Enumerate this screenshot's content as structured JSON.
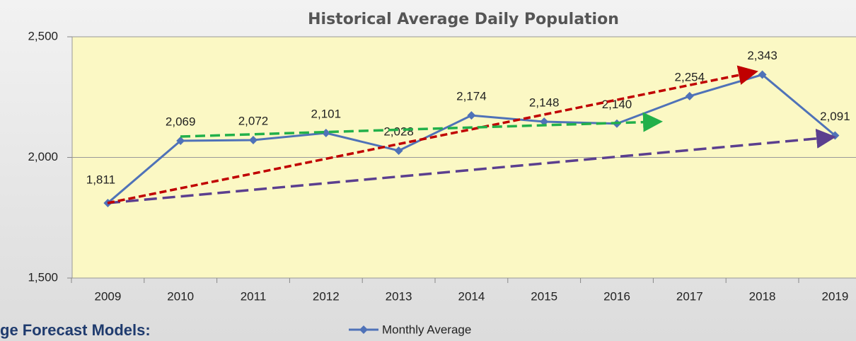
{
  "chart_data": {
    "type": "line",
    "title": "Historical Average Daily Population",
    "categories": [
      "2009",
      "2010",
      "2011",
      "2012",
      "2013",
      "2014",
      "2015",
      "2016",
      "2017",
      "2018",
      "2019"
    ],
    "series": [
      {
        "name": "Monthly Average",
        "color": "#4f72b8",
        "values": [
          1811,
          2069,
          2072,
          2101,
          2028,
          2174,
          2148,
          2140,
          2254,
          2343,
          2091
        ],
        "value_labels": [
          "1,811",
          "2,069",
          "2,072",
          "2,101",
          "2,028",
          "2,174",
          "2,148",
          "2,140",
          "2,254",
          "2,343",
          "2,091"
        ]
      }
    ],
    "ylim": [
      1500,
      2500
    ],
    "yticks": [
      {
        "value": 1500,
        "label": "1,500"
      },
      {
        "value": 2000,
        "label": "2,000"
      },
      {
        "value": 2500,
        "label": "2,500"
      }
    ],
    "grid": true,
    "legend": "bottom"
  },
  "footer_text": "ge Forecast Models:"
}
